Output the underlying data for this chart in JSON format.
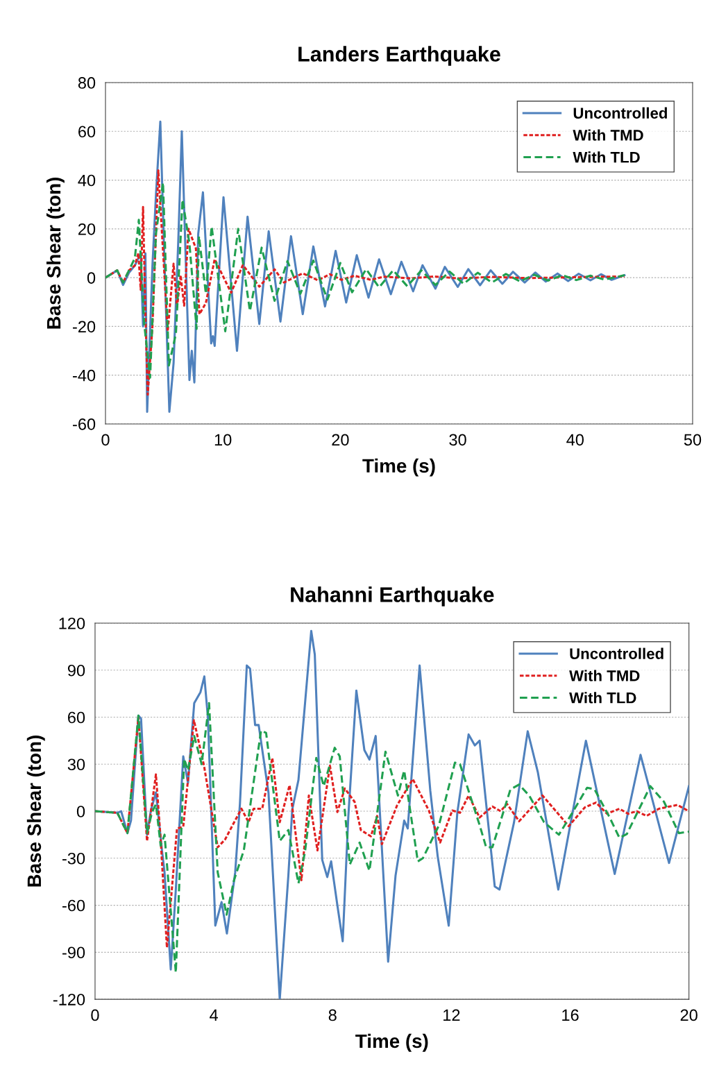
{
  "chart_data": [
    {
      "type": "line",
      "title": "Landers Earthquake",
      "xlabel": "Time (s)",
      "ylabel": "Base Shear (ton)",
      "xlim": [
        0,
        50
      ],
      "xticks": [
        0,
        10,
        20,
        30,
        40,
        50
      ],
      "ylim": [
        -60,
        80
      ],
      "yticks": [
        -60,
        -40,
        -20,
        0,
        20,
        40,
        60,
        80
      ],
      "grid": "y",
      "legend": "top right",
      "marker": "none",
      "series": [
        {
          "name": "Uncontrolled",
          "color": "#4f81bd",
          "line_style": "solid",
          "x": [
            0,
            1,
            1.5,
            2,
            2.5,
            3,
            3.2,
            3.4,
            3.55,
            4.0,
            4.3,
            4.67,
            5.0,
            5.44,
            5.8,
            6.2,
            6.5,
            7.15,
            7.35,
            7.57,
            7.9,
            8.3,
            9.0,
            9.15,
            9.3,
            10.05,
            11.2,
            12.1,
            13.1,
            13.9,
            14.9,
            15.8,
            16.8,
            17.7,
            18.7,
            19.6,
            20.5,
            21.4,
            22.4,
            23.3,
            24.3,
            25.2,
            26.2,
            27.0,
            28.1,
            28.9,
            30.0,
            30.9,
            31.9,
            32.8,
            33.8,
            34.7,
            35.7,
            36.6,
            37.5,
            38.5,
            39.4,
            40.3,
            41.3,
            42.2,
            43.1,
            44.2
          ],
          "values": [
            0,
            3,
            -3,
            2,
            5,
            10,
            -20,
            10,
            -55,
            5,
            34,
            64,
            10,
            -55,
            -35,
            15,
            60,
            -42,
            -30,
            -43,
            18,
            35,
            -27,
            -24,
            -28,
            33,
            -30,
            25,
            -19,
            19,
            -18,
            17,
            -15,
            12.8,
            -11.8,
            11,
            -10.2,
            9.2,
            -8.2,
            7.5,
            -6.8,
            6.5,
            -5.6,
            5.1,
            -4.5,
            4.4,
            -3.8,
            3.5,
            -3.1,
            3.0,
            -2.5,
            2.4,
            -2.0,
            2.1,
            -1.6,
            1.7,
            -1.4,
            1.6,
            -1.1,
            1.4,
            -0.9,
            1.0
          ]
        },
        {
          "name": "With TMD",
          "color": "#e02020",
          "line_style": "dotted",
          "x": [
            0,
            1,
            1.5,
            2,
            2.5,
            2.8,
            3.0,
            3.2,
            3.4,
            3.6,
            4.0,
            4.5,
            5.3,
            5.8,
            6.1,
            6.4,
            6.7,
            7.07,
            7.7,
            8.0,
            8.55,
            9.3,
            10.7,
            11.7,
            13.1,
            14.4,
            15.2,
            16.8,
            18.1,
            19.1,
            20.1,
            21.2,
            22.6,
            23.7,
            26,
            28,
            30,
            33,
            36,
            40,
            44.2
          ],
          "values": [
            0,
            3,
            -2,
            3,
            5,
            10,
            -5,
            29,
            -15,
            -48,
            -20,
            44,
            -22,
            5.7,
            -12,
            1,
            -11.5,
            20,
            12,
            -15,
            -10.4,
            7.6,
            -6.2,
            5.2,
            -3.7,
            3.4,
            -2,
            1.8,
            -1.1,
            1.4,
            -0.9,
            0.8,
            -0.9,
            0.4,
            -0.3,
            0.5,
            -0.3,
            0.3,
            -0.2,
            0.2,
            0.5
          ]
        },
        {
          "name": "With TLD",
          "color": "#20a050",
          "line_style": "dashed",
          "x": [
            0,
            1,
            1.5,
            2,
            2.5,
            2.84,
            3.3,
            3.8,
            4.3,
            4.9,
            5.4,
            6.0,
            6.56,
            7.15,
            7.76,
            7.96,
            8.55,
            9.04,
            10.2,
            11.3,
            12.3,
            13.3,
            14.4,
            15.5,
            16.6,
            17.7,
            18.9,
            20.0,
            21.0,
            22.2,
            23.3,
            24.5,
            25.7,
            26.9,
            28.1,
            29.3,
            30.5,
            31.7,
            32.9,
            34.1,
            35.3,
            36.5,
            37.7,
            38.9,
            40.1,
            41.3,
            42.5,
            44.2
          ],
          "values": [
            0,
            3,
            -2,
            3,
            8,
            23.7,
            -19,
            -41,
            18,
            39,
            -36,
            -23,
            32,
            14,
            -21,
            17,
            -6.6,
            21,
            -22,
            20,
            -13.7,
            12.3,
            -9.5,
            6.8,
            -6.6,
            7,
            -9,
            6,
            -6,
            3.5,
            -4,
            3,
            -3.5,
            3,
            -3,
            2.5,
            -2.5,
            2,
            -2,
            1.5,
            -1.5,
            1.2,
            -1.2,
            1,
            -1,
            0.8,
            -0.8,
            1
          ]
        }
      ]
    },
    {
      "type": "line",
      "title": "Nahanni Earthquake",
      "xlabel": "Time (s)",
      "ylabel": "Base Shear (ton)",
      "xlim": [
        0,
        20
      ],
      "xticks": [
        0,
        4,
        8,
        12,
        16,
        20
      ],
      "ylim": [
        -120,
        120
      ],
      "yticks": [
        -120,
        -90,
        -60,
        -30,
        0,
        30,
        60,
        90,
        120
      ],
      "grid": "y",
      "legend": "top right",
      "marker": "none",
      "series": [
        {
          "name": "Uncontrolled",
          "color": "#4f81bd",
          "line_style": "solid",
          "x": [
            0,
            0.75,
            0.88,
            1.09,
            1.21,
            1.46,
            1.55,
            1.75,
            1.88,
            2.05,
            2.26,
            2.34,
            2.55,
            2.72,
            2.97,
            3.13,
            3.34,
            3.55,
            3.68,
            3.8,
            4.05,
            4.26,
            4.44,
            4.72,
            4.88,
            5.11,
            5.22,
            5.39,
            5.51,
            5.84,
            6.22,
            6.51,
            6.64,
            6.85,
            7.28,
            7.4,
            7.65,
            7.82,
            7.95,
            8.16,
            8.34,
            8.53,
            8.8,
            9.07,
            9.24,
            9.45,
            9.87,
            10.12,
            10.41,
            10.53,
            10.93,
            11.29,
            11.54,
            11.91,
            12.2,
            12.58,
            12.79,
            12.95,
            13.46,
            13.62,
            14.11,
            14.57,
            14.91,
            15.6,
            16.53,
            17.5,
            18.37,
            19.33,
            20.0
          ],
          "values": [
            0,
            -1,
            0,
            -14,
            -6,
            61,
            59,
            -15,
            0.5,
            12,
            -26,
            -39,
            -101,
            -50,
            35,
            18,
            69,
            76,
            86,
            60,
            -73,
            -58,
            -78,
            -39,
            5,
            93,
            91,
            55,
            55,
            12,
            -120,
            -41,
            1,
            20,
            115,
            100,
            -31,
            -42,
            -32,
            -60,
            -83,
            -3,
            77,
            39,
            33,
            48,
            -96,
            -41,
            -6,
            -11,
            93,
            13,
            -29,
            -73,
            -1,
            49,
            42,
            45,
            -48,
            -50,
            -7,
            51,
            25,
            -50,
            45,
            -40,
            36,
            -33,
            16
          ]
        },
        {
          "name": "With TMD",
          "color": "#e02020",
          "line_style": "dotted",
          "x": [
            0,
            0.75,
            1.09,
            1.46,
            1.75,
            2.05,
            2.21,
            2.42,
            2.76,
            2.97,
            3.33,
            3.67,
            4.13,
            4.38,
            4.63,
            4.93,
            5.17,
            5.34,
            5.63,
            5.97,
            6.22,
            6.55,
            6.95,
            7.2,
            7.49,
            7.91,
            8.16,
            8.41,
            8.74,
            8.95,
            9.29,
            9.5,
            9.66,
            10.17,
            10.7,
            11.24,
            11.62,
            12.03,
            12.29,
            12.58,
            12.95,
            13.38,
            13.66,
            13.87,
            14.28,
            15.07,
            15.95,
            16.49,
            16.87,
            17.24,
            17.66,
            17.95,
            18.24,
            18.57,
            18.99,
            19.61,
            20.0
          ],
          "values": [
            0,
            -1,
            -14,
            60,
            -19,
            23.5,
            -18,
            -87,
            -11,
            -10,
            58,
            29,
            -23,
            -18,
            -9,
            1.6,
            -7,
            1.6,
            1.6,
            34,
            -7,
            16.6,
            -44,
            10,
            -25,
            29,
            -0.5,
            14.5,
            6,
            -12,
            -16,
            -3,
            -21,
            3.7,
            20.5,
            0.5,
            -20,
            0.5,
            -1,
            10,
            -4,
            3,
            0,
            4.7,
            -6.4,
            10,
            -9.5,
            2.4,
            5.5,
            -1.6,
            1.6,
            -1.6,
            0,
            -3,
            1.6,
            4,
            0
          ]
        },
        {
          "name": "With TLD",
          "color": "#20a050",
          "line_style": "dashed",
          "x": [
            0,
            0.75,
            1.09,
            1.46,
            1.75,
            1.92,
            2.05,
            2.21,
            2.34,
            2.72,
            3.0,
            3.13,
            3.34,
            3.59,
            3.84,
            4.13,
            4.43,
            4.68,
            5.01,
            5.59,
            5.76,
            6.22,
            6.51,
            6.85,
            7.07,
            7.45,
            7.7,
            8.07,
            8.24,
            8.58,
            8.91,
            9.24,
            9.78,
            10.2,
            10.41,
            10.87,
            11.04,
            11.58,
            12.12,
            12.29,
            12.95,
            13.17,
            13.38,
            13.99,
            14.28,
            14.62,
            15.12,
            15.62,
            16.04,
            16.57,
            16.82,
            17.33,
            17.66,
            17.91,
            18.7,
            19.16,
            19.66,
            20.0
          ],
          "values": [
            0,
            -1,
            -14,
            61,
            -14,
            -0.5,
            4.4,
            -22,
            -15,
            -103,
            33.5,
            26,
            48,
            30,
            69,
            -39,
            -66,
            -44,
            -25,
            51.5,
            50,
            -19,
            -12,
            -46,
            -26,
            34,
            16,
            40.5,
            35,
            -34,
            -20,
            -38,
            38,
            10,
            26,
            -32,
            -30,
            -9,
            31,
            30,
            -8.8,
            -23,
            -23,
            14,
            17,
            10,
            -7,
            -15,
            -2,
            15,
            14,
            -4,
            -17,
            -14.5,
            16,
            6,
            -14,
            -13
          ]
        }
      ]
    }
  ]
}
